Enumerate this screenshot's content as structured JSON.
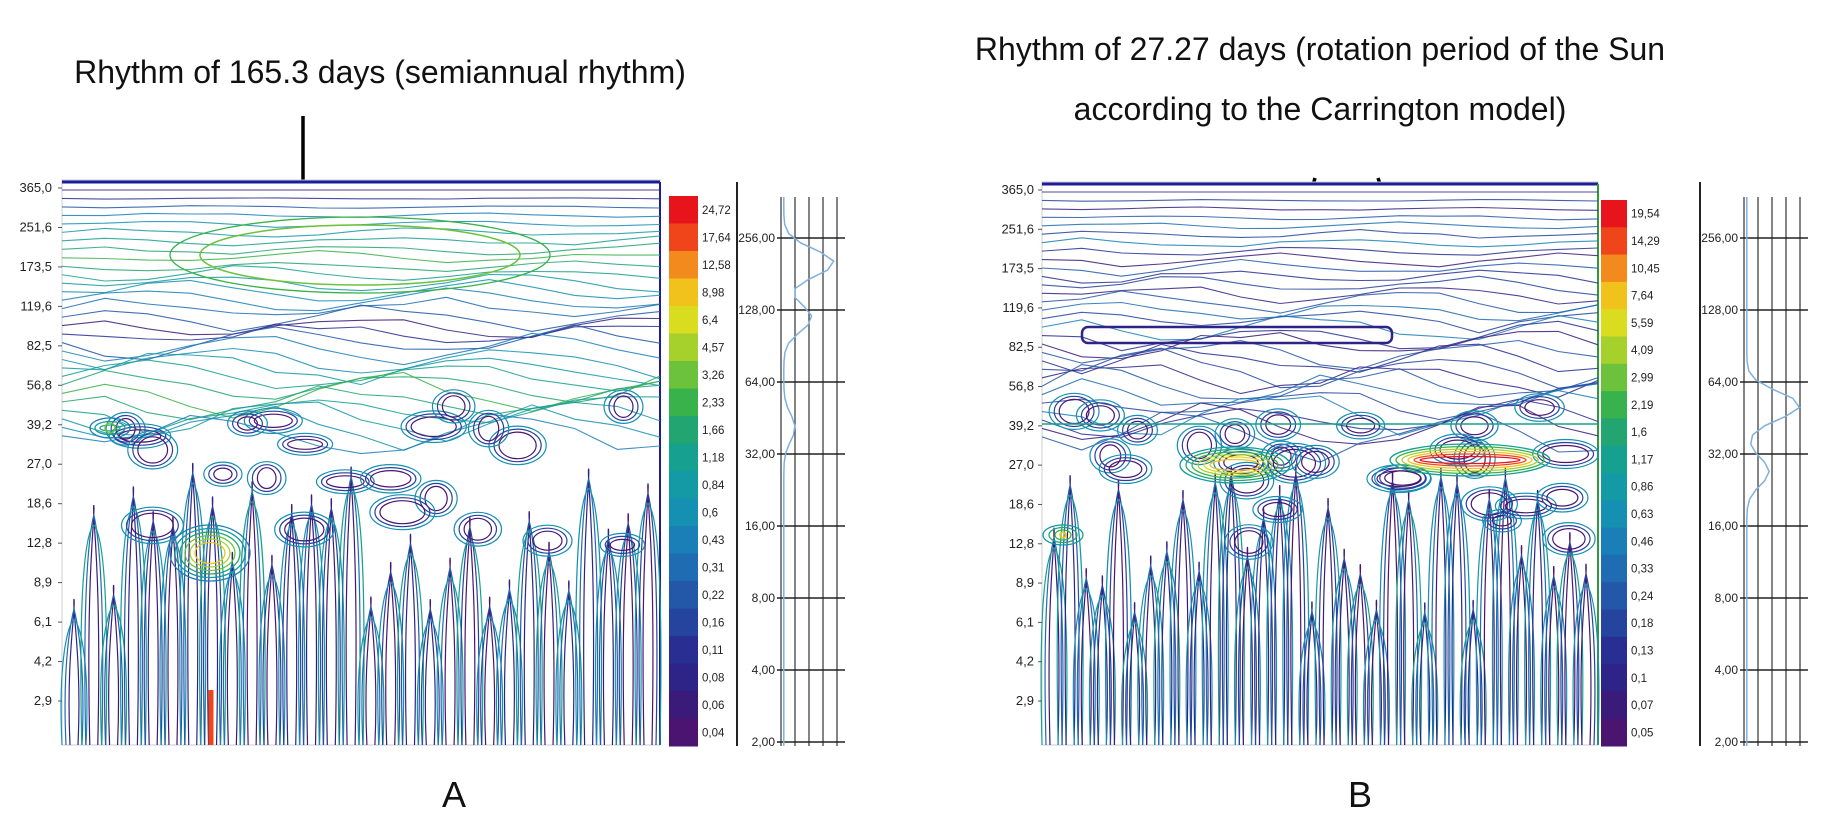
{
  "panels": [
    {
      "letter": "A",
      "annotation": [
        "Rhythm of 165.3 days (semiannual rhythm)"
      ],
      "y_ticks": [
        "365,0",
        "251,6",
        "173,5",
        "119,6",
        "82,5",
        "56,8",
        "39,2",
        "27,0",
        "18,6",
        "12,8",
        "8,9",
        "6,1",
        "4,2",
        "2,9"
      ],
      "color_scale": [
        "24,72",
        "17,64",
        "12,58",
        "8,98",
        "6,4",
        "4,57",
        "3,26",
        "2,33",
        "1,66",
        "1,18",
        "0,84",
        "0,6",
        "0,43",
        "0,31",
        "0,22",
        "0,16",
        "0,11",
        "0,08",
        "0,06",
        "0,04"
      ],
      "period_ticks": [
        "256,00",
        "128,00",
        "64,00",
        "32,00",
        "16,00",
        "8,00",
        "4,00",
        "2,00"
      ],
      "arrow_targets": [
        165.3
      ]
    },
    {
      "letter": "B",
      "annotation": [
        "Rhythm of 27.27 days (rotation period of the Sun",
        "according to the Carrington model)"
      ],
      "y_ticks": [
        "365,0",
        "251,6",
        "173,5",
        "119,6",
        "82,5",
        "56,8",
        "39,2",
        "27,0",
        "18,6",
        "12,8",
        "8,9",
        "6,1",
        "4,2",
        "2,9"
      ],
      "color_scale": [
        "19,54",
        "14,29",
        "10,45",
        "7,64",
        "5,59",
        "4,09",
        "2,99",
        "2,19",
        "1,6",
        "1,17",
        "0,86",
        "0,63",
        "0,46",
        "0,33",
        "0,24",
        "0,18",
        "0,13",
        "0,1",
        "0,07",
        "0,05"
      ],
      "period_ticks": [
        "256,00",
        "128,00",
        "64,00",
        "32,00",
        "16,00",
        "8,00",
        "4,00",
        "2,00"
      ],
      "arrow_targets": [
        27.27,
        27.27
      ]
    }
  ],
  "colors": {
    "scale": [
      "#e8141c",
      "#f0451a",
      "#f38a1e",
      "#f1c21b",
      "#d9dc1f",
      "#a6d12c",
      "#6cc23a",
      "#38b24a",
      "#22a570",
      "#16a08f",
      "#139aa5",
      "#1590b2",
      "#1a7fb7",
      "#1f6cb3",
      "#2357a8",
      "#25449e",
      "#292f92",
      "#2e2386",
      "#3a1b7a",
      "#4a1470"
    ],
    "frame": "#1d1d9a",
    "arrow": "#000000",
    "spectrum_line": "#7fb0dd"
  },
  "chart_data": [
    {
      "type": "heatmap",
      "title": "",
      "xlabel": "",
      "ylabel": "",
      "y_ticks": [
        365.0,
        251.6,
        173.5,
        119.6,
        82.5,
        56.8,
        39.2,
        27.0,
        18.6,
        12.8,
        8.9,
        6.1,
        4.2,
        2.9
      ],
      "y_scale": "log",
      "color_levels": [
        24.72,
        17.64,
        12.58,
        8.98,
        6.4,
        4.57,
        3.26,
        2.33,
        1.66,
        1.18,
        0.84,
        0.6,
        0.43,
        0.31,
        0.22,
        0.16,
        0.11,
        0.08,
        0.06,
        0.04
      ],
      "global_spectrum_period_ticks": [
        256,
        128,
        64,
        32,
        16,
        8,
        4,
        2
      ],
      "dominant_rhythms_days": [
        165.3
      ]
    },
    {
      "type": "heatmap",
      "title": "",
      "xlabel": "",
      "ylabel": "",
      "y_ticks": [
        365.0,
        251.6,
        173.5,
        119.6,
        82.5,
        56.8,
        39.2,
        27.0,
        18.6,
        12.8,
        8.9,
        6.1,
        4.2,
        2.9
      ],
      "y_scale": "log",
      "color_levels": [
        19.54,
        14.29,
        10.45,
        7.64,
        5.59,
        4.09,
        2.99,
        2.19,
        1.6,
        1.17,
        0.86,
        0.63,
        0.46,
        0.33,
        0.24,
        0.18,
        0.13,
        0.1,
        0.07,
        0.05
      ],
      "global_spectrum_period_ticks": [
        256,
        128,
        64,
        32,
        16,
        8,
        4,
        2
      ],
      "dominant_rhythms_days": [
        27.27
      ]
    }
  ]
}
